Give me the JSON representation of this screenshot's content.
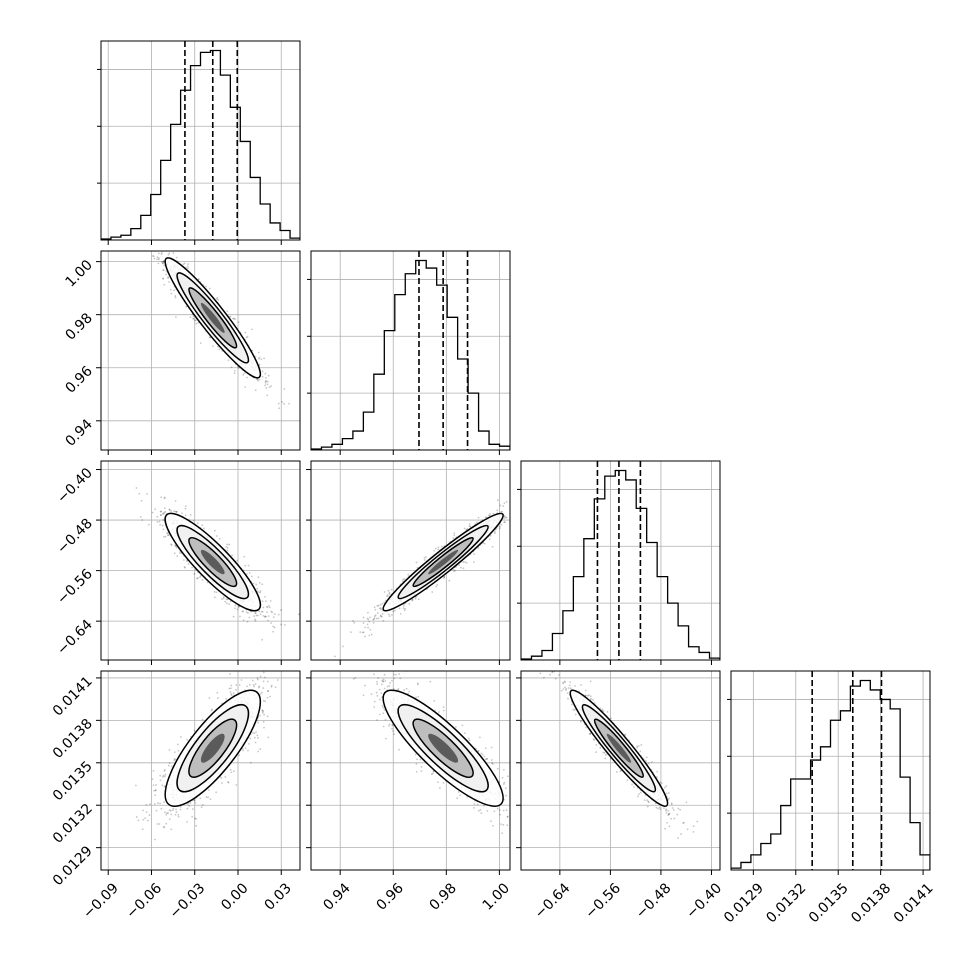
{
  "chart_data": {
    "type": "corner",
    "grid": true,
    "parameters": [
      {
        "range": [
          -0.095,
          0.043
        ],
        "ticks": [
          -0.09,
          -0.06,
          -0.03,
          0.0,
          0.03
        ],
        "tick_labels": [
          "−0.09",
          "−0.06",
          "−0.03",
          "0.00",
          "0.03"
        ],
        "quantiles": [
          -0.0368,
          -0.0175,
          -0.0005
        ]
      },
      {
        "range": [
          0.929,
          1.004
        ],
        "ticks": [
          0.94,
          0.96,
          0.98,
          1.0
        ],
        "tick_labels": [
          "0.94",
          "0.96",
          "0.98",
          "1.00"
        ],
        "quantiles": [
          0.9697,
          0.9788,
          0.988
        ]
      },
      {
        "range": [
          -0.7015,
          -0.3865
        ],
        "ticks": [
          -0.64,
          -0.56,
          -0.48,
          -0.4
        ],
        "tick_labels": [
          "−0.64",
          "−0.56",
          "−0.48",
          "−0.40"
        ],
        "quantiles": [
          -0.5805,
          -0.5465,
          -0.5125
        ]
      },
      {
        "range": [
          0.012742,
          0.014149
        ],
        "ticks": [
          0.0129,
          0.0132,
          0.0135,
          0.0138,
          0.0141
        ],
        "tick_labels": [
          "0.0129",
          "0.0132",
          "0.0135",
          "0.0138",
          "0.0141"
        ],
        "quantiles": [
          0.013316,
          0.013603,
          0.013806
        ]
      }
    ],
    "histograms": [
      [
        0.005,
        0.015,
        0.025,
        0.06,
        0.13,
        0.24,
        0.42,
        0.61,
        0.79,
        0.92,
        0.99,
        1.0,
        0.87,
        0.7,
        0.52,
        0.33,
        0.19,
        0.09,
        0.05,
        0.01
      ],
      [
        0.005,
        0.015,
        0.03,
        0.06,
        0.1,
        0.2,
        0.4,
        0.63,
        0.82,
        0.93,
        1.0,
        0.96,
        0.87,
        0.7,
        0.48,
        0.3,
        0.1,
        0.03,
        0.02
      ],
      [
        0.005,
        0.02,
        0.05,
        0.14,
        0.26,
        0.44,
        0.64,
        0.85,
        0.97,
        1.0,
        0.95,
        0.8,
        0.62,
        0.44,
        0.3,
        0.18,
        0.07,
        0.04,
        0.01
      ],
      [
        0.01,
        0.04,
        0.08,
        0.14,
        0.19,
        0.34,
        0.48,
        0.48,
        0.58,
        0.65,
        0.79,
        0.84,
        0.97,
        1.0,
        0.95,
        0.9,
        0.85,
        0.49,
        0.25,
        0.08
      ]
    ],
    "pairs": [
      {
        "x_param": 0,
        "y_param": 1,
        "mean": [
          -0.0175,
          0.9788
        ],
        "sd": [
          0.0165,
          0.0113
        ],
        "corr": -0.94
      },
      {
        "x_param": 0,
        "y_param": 2,
        "mean": [
          -0.0175,
          -0.5465
        ],
        "sd": [
          0.0165,
          0.0385
        ],
        "corr": -0.88
      },
      {
        "x_param": 1,
        "y_param": 2,
        "mean": [
          0.9788,
          -0.5465
        ],
        "sd": [
          0.0113,
          0.0385
        ],
        "corr": 0.96
      },
      {
        "x_param": 0,
        "y_param": 3,
        "mean": [
          -0.0175,
          0.013603
        ],
        "sd": [
          0.0165,
          0.000205
        ],
        "corr": 0.8
      },
      {
        "x_param": 1,
        "y_param": 3,
        "mean": [
          0.9788,
          0.013603
        ],
        "sd": [
          0.0113,
          0.000205
        ],
        "corr": -0.86
      },
      {
        "x_param": 2,
        "y_param": 3,
        "mean": [
          -0.5465,
          0.013603
        ],
        "sd": [
          0.0385,
          0.000205
        ],
        "corr": -0.95
      }
    ]
  }
}
